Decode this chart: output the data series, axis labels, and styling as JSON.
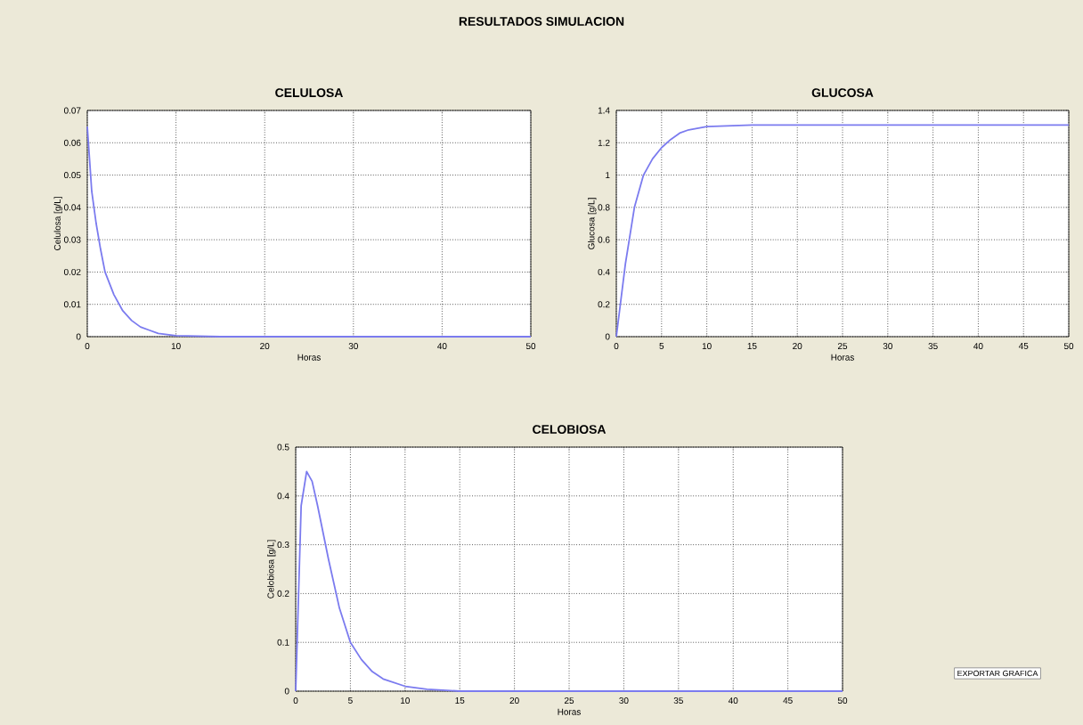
{
  "chart_data": [
    {
      "type": "line",
      "title": "CELULOSA",
      "xlabel": "Horas",
      "ylabel": "Celulosa [g/L]",
      "annotations": [
        "RESULTADOS SIMULACION"
      ],
      "grid": true,
      "line_style": "solid",
      "xlim": [
        0,
        50
      ],
      "ylim": [
        0,
        0.07
      ],
      "xticks": [
        0,
        10,
        20,
        30,
        40,
        50
      ],
      "yticks": [
        0,
        0.01,
        0.02,
        0.03,
        0.04,
        0.05,
        0.06,
        0.07
      ],
      "series": [
        {
          "color": "#7b7bef",
          "x": [
            0,
            0.25,
            0.5,
            1,
            1.5,
            2,
            3,
            4,
            5,
            6,
            7,
            8,
            10,
            15,
            50
          ],
          "values": [
            0.065,
            0.055,
            0.045,
            0.035,
            0.027,
            0.02,
            0.013,
            0.008,
            0.005,
            0.003,
            0.002,
            0.001,
            0.0003,
            0,
            0
          ]
        }
      ]
    },
    {
      "type": "line",
      "title": "GLUCOSA",
      "xlabel": "Horas",
      "ylabel": "Glucosa [g/L]",
      "grid": true,
      "line_style": "solid",
      "xlim": [
        0,
        50
      ],
      "ylim": [
        0,
        1.4
      ],
      "xticks": [
        0,
        5,
        10,
        15,
        20,
        25,
        30,
        35,
        40,
        45,
        50
      ],
      "yticks": [
        0,
        0.2,
        0.4,
        0.6,
        0.8,
        1,
        1.2,
        1.4
      ],
      "series": [
        {
          "color": "#7b7bef",
          "x": [
            0,
            1,
            2,
            3,
            4,
            5,
            6,
            7,
            8,
            10,
            15,
            50
          ],
          "values": [
            0,
            0.45,
            0.8,
            1.0,
            1.1,
            1.17,
            1.22,
            1.26,
            1.28,
            1.3,
            1.31,
            1.31
          ]
        }
      ]
    },
    {
      "type": "line",
      "title": "CELOBIOSA",
      "xlabel": "Horas",
      "ylabel": "Celobiosa [g/L]",
      "annotations": [
        "EXPORTAR GRAFICA"
      ],
      "grid": true,
      "line_style": "solid",
      "xlim": [
        0,
        50
      ],
      "ylim": [
        0,
        0.5
      ],
      "xticks": [
        0,
        5,
        10,
        15,
        20,
        25,
        30,
        35,
        40,
        45,
        50
      ],
      "yticks": [
        0,
        0.1,
        0.2,
        0.3,
        0.4,
        0.5
      ],
      "series": [
        {
          "color": "#7b7bef",
          "x": [
            0,
            0.5,
            1,
            1.5,
            2,
            3,
            4,
            5,
            6,
            7,
            8,
            10,
            12,
            15,
            50
          ],
          "values": [
            0,
            0.38,
            0.45,
            0.43,
            0.38,
            0.27,
            0.17,
            0.1,
            0.065,
            0.04,
            0.025,
            0.01,
            0.004,
            0,
            0
          ]
        }
      ]
    }
  ]
}
